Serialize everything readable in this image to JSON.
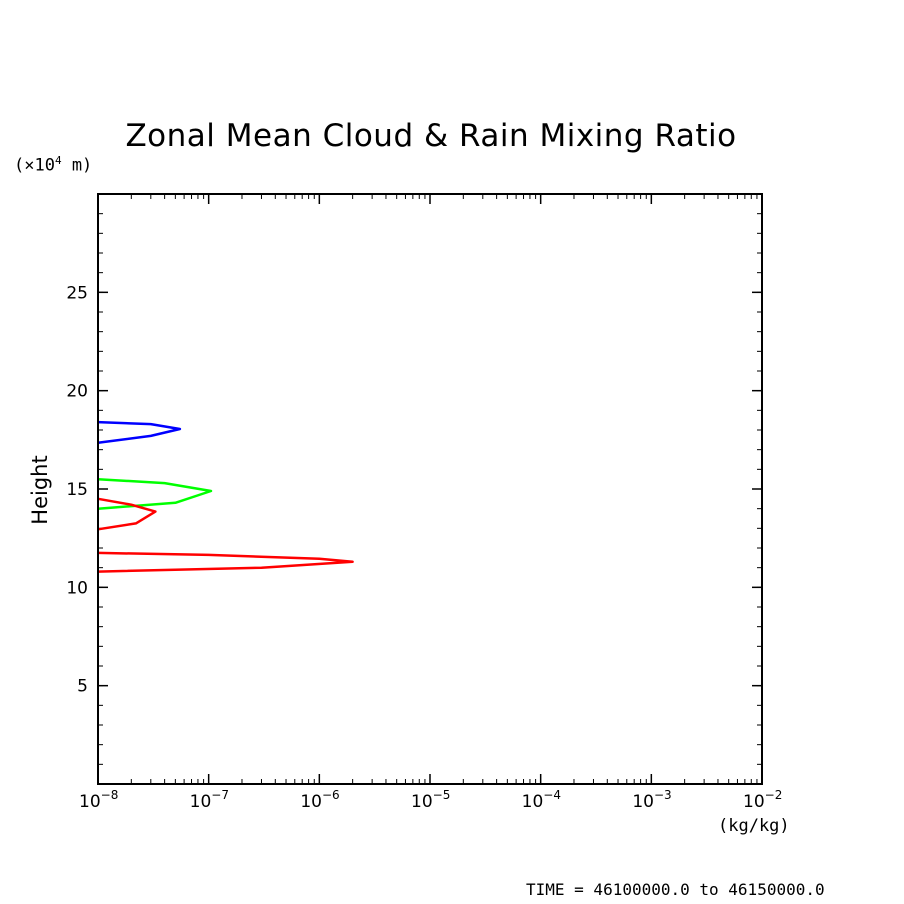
{
  "chart_data": {
    "type": "line",
    "title": "Zonal Mean Cloud & Rain Mixing Ratio",
    "ylabel": "Height",
    "yunit": "(×10",
    "yunit_exp": "4",
    "yunit_tail": " m)",
    "xunit": "(kg/kg)",
    "xscale": "log",
    "xlim": [
      1e-08,
      0.01
    ],
    "ylim": [
      0,
      30
    ],
    "grid": false,
    "x_ticks": [
      {
        "value": 1e-08,
        "base": "10",
        "exp": "−8"
      },
      {
        "value": 1e-07,
        "base": "10",
        "exp": "−7"
      },
      {
        "value": 1e-06,
        "base": "10",
        "exp": "−6"
      },
      {
        "value": 1e-05,
        "base": "10",
        "exp": "−5"
      },
      {
        "value": 0.0001,
        "base": "10",
        "exp": "−4"
      },
      {
        "value": 0.001,
        "base": "10",
        "exp": "−3"
      },
      {
        "value": 0.01,
        "base": "10",
        "exp": "−2"
      }
    ],
    "y_ticks": [
      5,
      10,
      15,
      20,
      25
    ],
    "series": [
      {
        "color": "#0000ff",
        "points": [
          [
            1e-08,
            18.4
          ],
          [
            3e-08,
            18.3
          ],
          [
            5.5e-08,
            18.05
          ],
          [
            3e-08,
            17.7
          ],
          [
            1e-08,
            17.35
          ]
        ]
      },
      {
        "color": "#00ff00",
        "points": [
          [
            1e-08,
            15.5
          ],
          [
            4e-08,
            15.3
          ],
          [
            1.05e-07,
            14.9
          ],
          [
            5e-08,
            14.3
          ],
          [
            1e-08,
            14.0
          ]
        ]
      },
      {
        "color": "#ff0000",
        "points": [
          [
            1e-08,
            14.5
          ],
          [
            2e-08,
            14.2
          ],
          [
            3.3e-08,
            13.85
          ],
          [
            2.2e-08,
            13.25
          ],
          [
            1e-08,
            12.95
          ]
        ]
      },
      {
        "color": "#ff0000",
        "points": [
          [
            1e-08,
            11.75
          ],
          [
            1e-07,
            11.65
          ],
          [
            1e-06,
            11.45
          ],
          [
            2e-06,
            11.3
          ],
          [
            3e-07,
            11.0
          ],
          [
            1e-08,
            10.8
          ]
        ]
      }
    ]
  },
  "footer": {
    "time_text": "TIME = 46100000.0 to 46150000.0"
  }
}
